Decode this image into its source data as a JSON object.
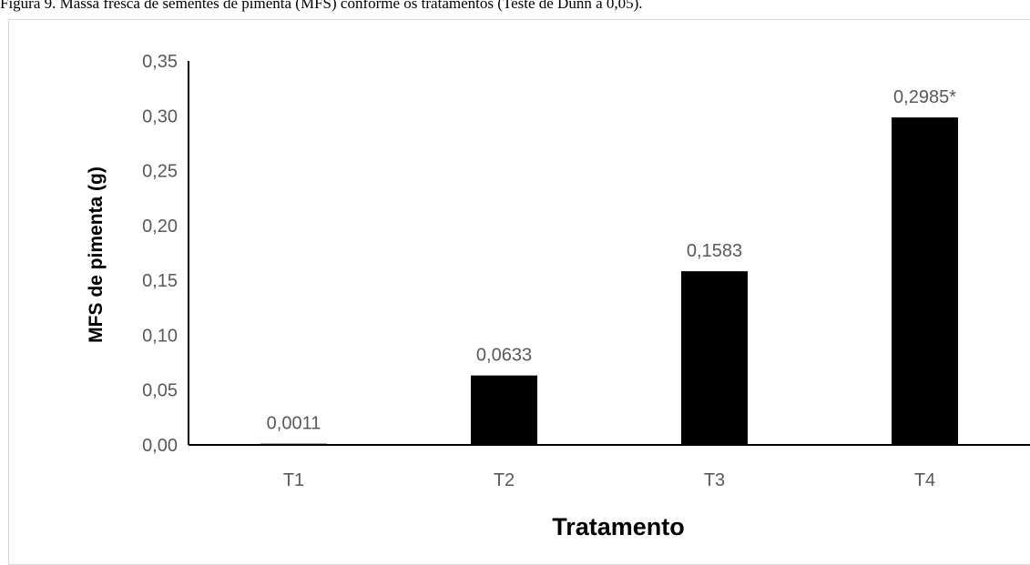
{
  "caption": "Figura 9. Massa fresca de sementes de pimenta (MFS) conforme os tratamentos (Teste de Dunn a 0,05).",
  "chart_data": {
    "type": "bar",
    "categories": [
      "T1",
      "T2",
      "T3",
      "T4"
    ],
    "values": [
      0.0011,
      0.0633,
      0.1583,
      0.2985
    ],
    "data_labels": [
      "0,0011",
      "0,0633",
      "0,1583",
      "0,2985*"
    ],
    "title": "",
    "xlabel": "Tratamento",
    "ylabel": "MFS de pimenta (g)",
    "ylim": [
      0,
      0.35
    ],
    "yticks": [
      "0,00",
      "0,05",
      "0,10",
      "0,15",
      "0,20",
      "0,25",
      "0,30",
      "0,35"
    ],
    "bar_color": "#000000",
    "grid": false
  }
}
